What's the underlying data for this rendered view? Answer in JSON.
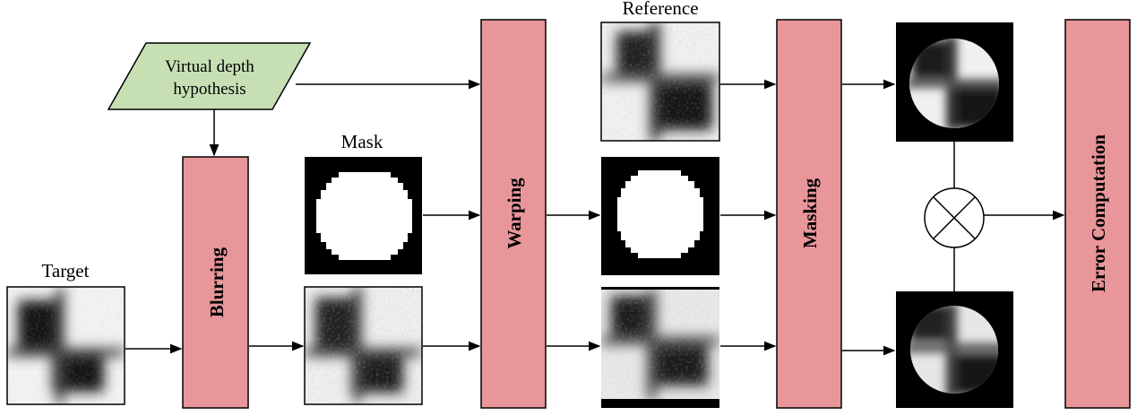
{
  "labels": {
    "virtual_depth_line1": "Virtual depth",
    "virtual_depth_line2": "hypothesis",
    "target": "Target",
    "mask": "Mask",
    "reference": "Reference",
    "blurring": "Blurring",
    "warping": "Warping",
    "masking": "Masking",
    "error_computation": "Error Computation"
  },
  "colors": {
    "block_fill": "#e8969a",
    "block_stroke": "#000000",
    "parallelogram_fill": "#c6e0b4",
    "patch_background": "#000000",
    "mask_fill": "#ffffff"
  }
}
